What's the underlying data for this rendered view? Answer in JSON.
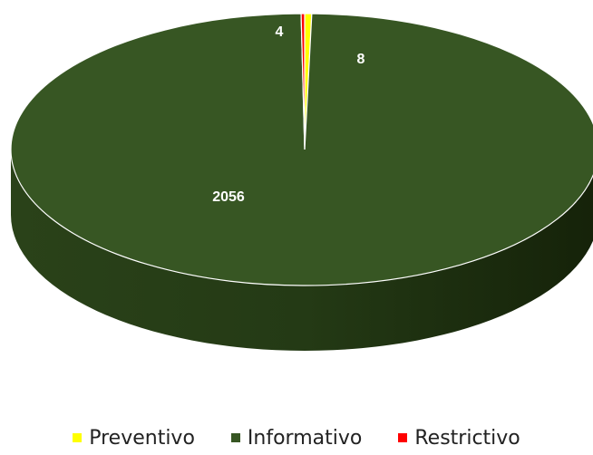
{
  "chart_data": {
    "type": "pie",
    "style": "3d",
    "title": "",
    "series": [
      {
        "name": "Preventivo",
        "value": 8,
        "label": "8",
        "color": "#ffff00"
      },
      {
        "name": "Informativo",
        "value": 2056,
        "label": "2056",
        "color": "#375623"
      },
      {
        "name": "Restrictivo",
        "value": 4,
        "label": "4",
        "color": "#ff0000"
      }
    ],
    "legend_position": "bottom"
  }
}
